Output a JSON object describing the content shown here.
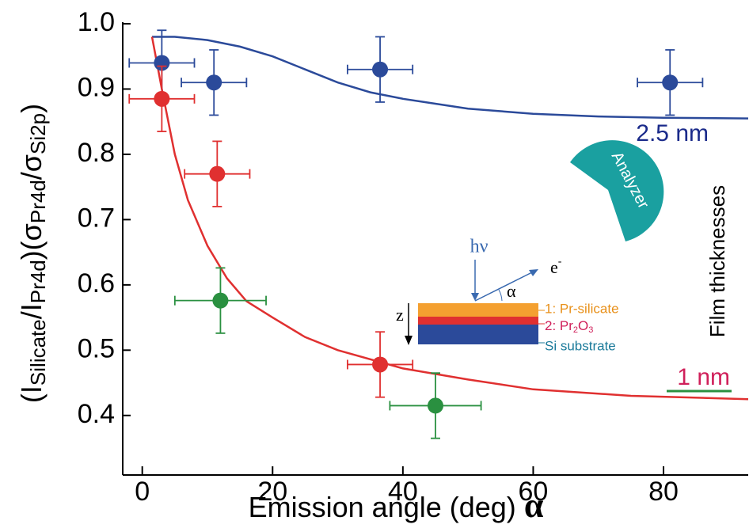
{
  "chart_data": {
    "type": "scatter",
    "x_label": "Emission angle (deg)",
    "x_label_symbol": "α",
    "y_label": [
      {
        "text": "(I"
      },
      {
        "text": "Silicate",
        "sub": true
      },
      {
        "text": "/I"
      },
      {
        "text": "Pr4d",
        "sub": true
      },
      {
        "text": ")(σ"
      },
      {
        "text": "Pr4d",
        "sub": true
      },
      {
        "text": "/σ"
      },
      {
        "text": "Si2p",
        "sub": true
      },
      {
        "text": ")"
      }
    ],
    "xlim": [
      -3,
      93
    ],
    "ylim": [
      0.31,
      1.0
    ],
    "xticks": [
      0,
      20,
      40,
      60,
      80
    ],
    "yticks": [
      0.4,
      0.5,
      0.6,
      0.7,
      0.8,
      0.9,
      {
        "value": 1,
        "label": "1.0"
      }
    ],
    "points": [
      {
        "color": "#2b4a9a",
        "x": [
          3,
          11,
          36.5,
          81
        ],
        "values": [
          0.94,
          0.91,
          0.93,
          0.91
        ],
        "x_err": [
          5,
          5,
          5,
          5
        ],
        "y_err": [
          0.05,
          0.05,
          0.05,
          0.05
        ]
      },
      {
        "color": "#e03030",
        "x": [
          3,
          11.5,
          36.5
        ],
        "values": [
          0.885,
          0.77,
          0.478
        ],
        "x_err": [
          5,
          5,
          5
        ],
        "y_err": [
          0.05,
          0.05,
          0.05
        ]
      },
      {
        "color": "#2a9040",
        "x": [
          12,
          45
        ],
        "values": [
          0.576,
          0.415
        ],
        "x_err": [
          7,
          7
        ],
        "y_err": [
          0.05,
          0.05
        ]
      }
    ],
    "series": [
      {
        "name": "2.5 nm",
        "color": "#2b4a9a",
        "x": [
          1.5,
          5,
          10,
          15,
          20,
          25,
          30,
          35,
          40,
          50,
          60,
          70,
          80,
          93
        ],
        "values": [
          0.98,
          0.98,
          0.975,
          0.965,
          0.95,
          0.93,
          0.91,
          0.895,
          0.885,
          0.87,
          0.862,
          0.858,
          0.856,
          0.855
        ]
      },
      {
        "name": "1 nm",
        "color": "#e03030",
        "x": [
          1.5,
          3,
          5,
          7,
          10,
          13,
          16,
          20,
          25,
          30,
          40,
          50,
          60,
          75,
          93
        ],
        "values": [
          0.98,
          0.9,
          0.8,
          0.73,
          0.66,
          0.61,
          0.575,
          0.55,
          0.52,
          0.5,
          0.472,
          0.455,
          0.44,
          0.43,
          0.425
        ]
      }
    ],
    "legend_title": "Film thicknesses",
    "inset": {
      "analyzer": "Analyzer",
      "photon": "hν",
      "electron": "e",
      "electron_sup": "-",
      "angle": "α",
      "depth": "z",
      "layers": [
        "1: Pr-silicate",
        {
          "text": "2: Pr",
          "sub": "2",
          "rest": "O",
          "sub2": "3"
        },
        "Si substrate"
      ]
    }
  }
}
